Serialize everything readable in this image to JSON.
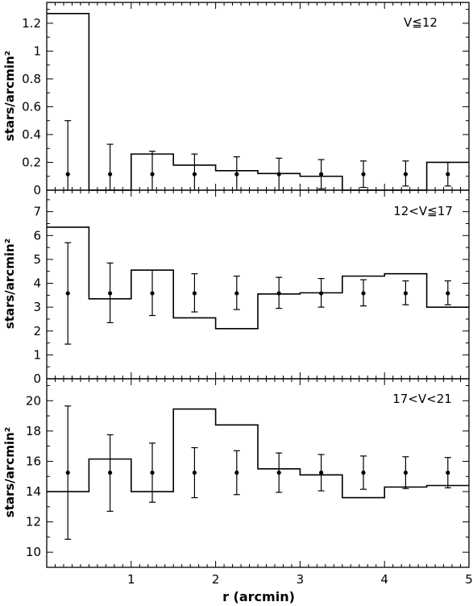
{
  "chart_data": [
    {
      "type": "line",
      "label": "V≦12",
      "ylabel": "stars/arcmin²",
      "xlim": [
        0,
        5
      ],
      "ylim": [
        0,
        1.35
      ],
      "y_ticks": [
        "0",
        "0.2",
        "0.4",
        "0.6",
        "0.8",
        "1",
        "1.2"
      ],
      "y_tick_values": [
        0,
        0.2,
        0.4,
        0.6,
        0.8,
        1.0,
        1.2
      ],
      "histogram": {
        "bin_edges": [
          0,
          0.5,
          1.0,
          1.5,
          2.0,
          2.5,
          3.0,
          3.5,
          4.0,
          4.5,
          5.0
        ],
        "values": [
          1.27,
          0.0,
          0.26,
          0.18,
          0.14,
          0.12,
          0.1,
          0.0,
          0.0,
          0.2
        ]
      },
      "errorbars": {
        "x": [
          0.25,
          0.75,
          1.25,
          1.75,
          2.25,
          2.75,
          3.25,
          3.75,
          4.25,
          4.75
        ],
        "y": [
          0.115,
          0.115,
          0.115,
          0.115,
          0.115,
          0.115,
          0.115,
          0.115,
          0.115,
          0.115
        ],
        "low": [
          0.0,
          0.0,
          0.0,
          0.0,
          0.0,
          0.0,
          0.01,
          0.02,
          0.03,
          0.03
        ],
        "high": [
          0.5,
          0.33,
          0.28,
          0.26,
          0.24,
          0.23,
          0.22,
          0.21,
          0.21,
          0.2
        ]
      }
    },
    {
      "type": "line",
      "label": "12<V≦17",
      "ylabel": "stars/arcmin²",
      "xlim": [
        0,
        5
      ],
      "ylim": [
        0,
        7.9
      ],
      "y_ticks": [
        "0",
        "1",
        "2",
        "3",
        "4",
        "5",
        "6",
        "7"
      ],
      "y_tick_values": [
        0,
        1,
        2,
        3,
        4,
        5,
        6,
        7
      ],
      "histogram": {
        "bin_edges": [
          0,
          0.5,
          1.0,
          1.5,
          2.0,
          2.5,
          3.0,
          3.5,
          4.0,
          4.5,
          5.0
        ],
        "values": [
          6.35,
          3.35,
          4.55,
          2.55,
          2.1,
          3.55,
          3.6,
          4.3,
          4.4,
          3.0
        ]
      },
      "errorbars": {
        "x": [
          0.25,
          0.75,
          1.25,
          1.75,
          2.25,
          2.75,
          3.25,
          3.75,
          4.25,
          4.75
        ],
        "y": [
          3.58,
          3.58,
          3.58,
          3.58,
          3.58,
          3.58,
          3.58,
          3.58,
          3.58,
          3.58
        ],
        "low": [
          1.45,
          2.35,
          2.65,
          2.8,
          2.9,
          2.95,
          3.0,
          3.05,
          3.1,
          3.1
        ],
        "high": [
          5.7,
          4.85,
          4.55,
          4.4,
          4.3,
          4.25,
          4.2,
          4.15,
          4.1,
          4.1
        ]
      }
    },
    {
      "type": "line",
      "label": "17<V<21",
      "ylabel": "stars/arcmin²",
      "xlabel": "r (arcmin)",
      "xlim": [
        0,
        5
      ],
      "ylim": [
        9,
        21.45
      ],
      "x_ticks": [
        "1",
        "2",
        "3",
        "4",
        "5"
      ],
      "x_tick_values": [
        1,
        2,
        3,
        4,
        5
      ],
      "y_ticks": [
        "10",
        "12",
        "14",
        "16",
        "18",
        "20"
      ],
      "y_tick_values": [
        10,
        12,
        14,
        16,
        18,
        20
      ],
      "histogram": {
        "bin_edges": [
          0,
          0.5,
          1.0,
          1.5,
          2.0,
          2.5,
          3.0,
          3.5,
          4.0,
          4.5,
          5.0
        ],
        "values": [
          14.0,
          16.15,
          14.0,
          19.45,
          18.4,
          15.5,
          15.1,
          13.6,
          14.3,
          14.4
        ]
      },
      "errorbars": {
        "x": [
          0.25,
          0.75,
          1.25,
          1.75,
          2.25,
          2.75,
          3.25,
          3.75,
          4.25,
          4.75
        ],
        "y": [
          15.25,
          15.25,
          15.25,
          15.25,
          15.25,
          15.25,
          15.25,
          15.25,
          15.25,
          15.25
        ],
        "low": [
          10.85,
          12.7,
          13.3,
          13.6,
          13.8,
          13.95,
          14.05,
          14.15,
          14.2,
          14.25
        ],
        "high": [
          19.65,
          17.75,
          17.2,
          16.9,
          16.7,
          16.55,
          16.45,
          16.35,
          16.3,
          16.25
        ]
      }
    }
  ]
}
